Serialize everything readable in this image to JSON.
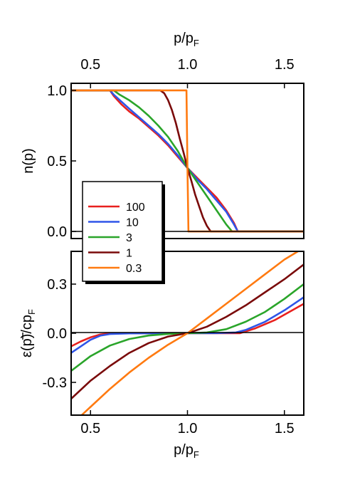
{
  "chart_data": [
    {
      "type": "line",
      "panel": "top",
      "xlabel_main": "p/p",
      "xlabel_sub": "F",
      "xlabel_position": "top",
      "ylabel": "n(p)",
      "xlim": [
        0.4,
        1.6
      ],
      "ylim": [
        -0.05,
        1.05
      ],
      "xticks": [
        "0.5",
        "1.0",
        "1.5"
      ],
      "xtick_values": [
        0.5,
        1.0,
        1.5
      ],
      "yticks": [
        "0.0",
        "0.5",
        "1.0"
      ],
      "ytick_values": [
        0.0,
        0.5,
        1.0
      ],
      "reference_line_y": 0,
      "series": [
        {
          "name": "100",
          "color": "#e8201e",
          "x": [
            0.4,
            0.6,
            0.62,
            0.66,
            0.7,
            0.75,
            0.8,
            0.85,
            0.9,
            0.95,
            1.0,
            1.05,
            1.1,
            1.15,
            1.2,
            1.24,
            1.26,
            1.6
          ],
          "y": [
            1.0,
            1.0,
            0.96,
            0.9,
            0.85,
            0.8,
            0.74,
            0.68,
            0.61,
            0.53,
            0.45,
            0.38,
            0.31,
            0.24,
            0.15,
            0.06,
            0.0,
            0.0
          ]
        },
        {
          "name": "10",
          "color": "#2f55e8",
          "x": [
            0.4,
            0.6,
            0.62,
            0.66,
            0.7,
            0.75,
            0.8,
            0.85,
            0.9,
            0.95,
            1.0,
            1.05,
            1.1,
            1.15,
            1.2,
            1.24,
            1.26,
            1.6
          ],
          "y": [
            1.0,
            1.0,
            0.97,
            0.92,
            0.87,
            0.81,
            0.75,
            0.69,
            0.62,
            0.54,
            0.45,
            0.37,
            0.3,
            0.22,
            0.14,
            0.05,
            0.0,
            0.0
          ]
        },
        {
          "name": "3",
          "color": "#2aa52a",
          "x": [
            0.4,
            0.62,
            0.65,
            0.7,
            0.75,
            0.8,
            0.85,
            0.9,
            0.95,
            1.0,
            1.05,
            1.1,
            1.15,
            1.2,
            1.23,
            1.6
          ],
          "y": [
            1.0,
            1.0,
            0.97,
            0.93,
            0.88,
            0.82,
            0.75,
            0.67,
            0.57,
            0.45,
            0.35,
            0.25,
            0.15,
            0.05,
            0.0,
            0.0
          ]
        },
        {
          "name": "1",
          "color": "#7a0a0a",
          "x": [
            0.4,
            0.86,
            0.88,
            0.9,
            0.92,
            0.94,
            0.96,
            0.98,
            1.0,
            1.02,
            1.04,
            1.06,
            1.08,
            1.1,
            1.12,
            1.6
          ],
          "y": [
            1.0,
            1.0,
            0.98,
            0.93,
            0.86,
            0.77,
            0.66,
            0.56,
            0.45,
            0.36,
            0.26,
            0.18,
            0.1,
            0.04,
            0.0,
            0.0
          ]
        },
        {
          "name": "0.3",
          "color": "#ff7a10",
          "x": [
            0.4,
            0.995,
            1.0,
            1.005,
            1.6
          ],
          "y": [
            1.0,
            1.0,
            0.45,
            0.0,
            0.0
          ]
        }
      ],
      "legend": {
        "placement": "lower-left",
        "entries": [
          {
            "label": "100",
            "color": "#e8201e"
          },
          {
            "label": "10",
            "color": "#2f55e8"
          },
          {
            "label": "3",
            "color": "#2aa52a"
          },
          {
            "label": "1",
            "color": "#7a0a0a"
          },
          {
            "label": "0.3",
            "color": "#ff7a10"
          }
        ]
      }
    },
    {
      "type": "line",
      "panel": "bottom",
      "xlabel_main": "p/p",
      "xlabel_sub": "F",
      "ylabel_prefix": "ε",
      "ylabel_main": "(p)/cp",
      "ylabel_sub": "F",
      "xlim": [
        0.4,
        1.6
      ],
      "ylim": [
        -0.5,
        0.5
      ],
      "xticks": [
        "0.5",
        "1.0",
        "1.5"
      ],
      "xtick_values": [
        0.5,
        1.0,
        1.5
      ],
      "yticks": [
        "-0.3",
        "0.0",
        "0.3"
      ],
      "ytick_values": [
        -0.3,
        0.0,
        0.3
      ],
      "reference_line_y": 0,
      "series": [
        {
          "name": "100",
          "color": "#e8201e",
          "x": [
            0.4,
            0.45,
            0.5,
            0.55,
            0.6,
            0.7,
            1.0,
            1.27,
            1.35,
            1.45,
            1.6
          ],
          "y": [
            -0.08,
            -0.05,
            -0.025,
            -0.008,
            0.0,
            0.0,
            0.0,
            0.0,
            0.03,
            0.08,
            0.18
          ]
        },
        {
          "name": "10",
          "color": "#2f55e8",
          "x": [
            0.4,
            0.45,
            0.5,
            0.55,
            0.6,
            0.7,
            0.85,
            1.0,
            1.15,
            1.25,
            1.3,
            1.4,
            1.5,
            1.6
          ],
          "y": [
            -0.12,
            -0.08,
            -0.04,
            -0.015,
            -0.005,
            -0.001,
            0.0,
            0.0,
            0.001,
            0.005,
            0.02,
            0.07,
            0.14,
            0.22
          ]
        },
        {
          "name": "3",
          "color": "#2aa52a",
          "x": [
            0.4,
            0.5,
            0.6,
            0.7,
            0.8,
            0.9,
            1.0,
            1.1,
            1.2,
            1.3,
            1.4,
            1.5,
            1.6
          ],
          "y": [
            -0.23,
            -0.14,
            -0.075,
            -0.035,
            -0.014,
            -0.004,
            0.0,
            0.005,
            0.025,
            0.07,
            0.13,
            0.21,
            0.3
          ]
        },
        {
          "name": "1",
          "color": "#7a0a0a",
          "x": [
            0.4,
            0.5,
            0.6,
            0.7,
            0.8,
            0.9,
            1.0,
            1.1,
            1.2,
            1.3,
            1.4,
            1.5,
            1.6
          ],
          "y": [
            -0.4,
            -0.29,
            -0.2,
            -0.12,
            -0.06,
            -0.02,
            0.0,
            0.04,
            0.1,
            0.17,
            0.25,
            0.33,
            0.42
          ]
        },
        {
          "name": "0.3",
          "color": "#ff7a10",
          "x": [
            0.4,
            0.5,
            0.6,
            0.7,
            0.8,
            0.9,
            1.0,
            1.1,
            1.2,
            1.3,
            1.4,
            1.5,
            1.57
          ],
          "y": [
            -0.56,
            -0.45,
            -0.34,
            -0.24,
            -0.15,
            -0.07,
            0.0,
            0.09,
            0.18,
            0.27,
            0.36,
            0.45,
            0.5
          ]
        }
      ]
    }
  ]
}
